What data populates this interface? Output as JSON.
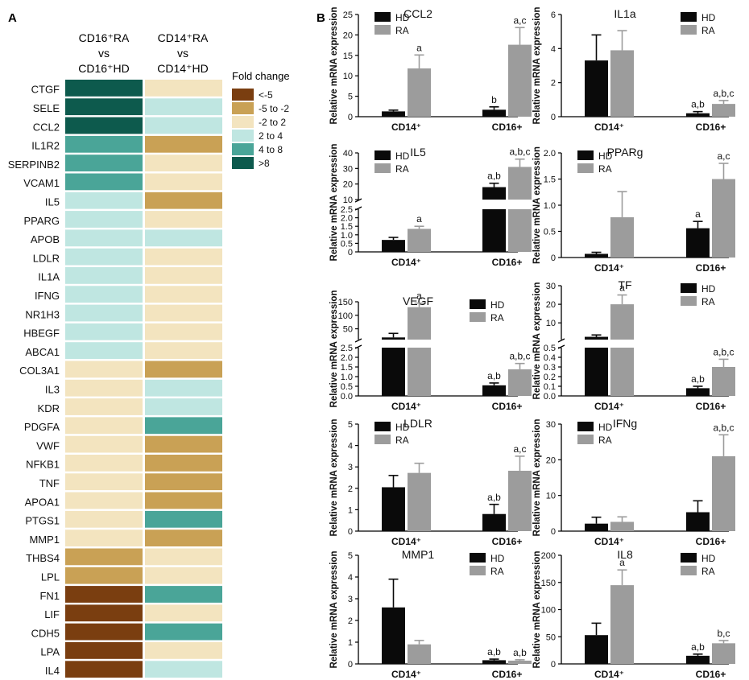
{
  "panel_a": {
    "label": "A",
    "col1_header": [
      "CD16⁺RA",
      "vs",
      "CD16⁺HD"
    ],
    "col2_header": [
      "CD14⁺RA",
      "vs",
      "CD14⁺HD"
    ],
    "legend_title": "Fold change",
    "legend": [
      {
        "label": "<-5",
        "color": "#7a3e10"
      },
      {
        "label": "-5 to -2",
        "color": "#c9a155"
      },
      {
        "label": "-2 to 2",
        "color": "#f3e4bf"
      },
      {
        "label": "2 to 4",
        "color": "#bfe6e1"
      },
      {
        "label": "4 to 8",
        "color": "#4aa598"
      },
      {
        "label": ">8",
        "color": "#0d5a4d"
      }
    ]
  },
  "panel_b": {
    "label": "B"
  },
  "chart_data": [
    {
      "type": "heatmap",
      "title": "Fold change",
      "columns": [
        "CD16⁺RA vs CD16⁺HD",
        "CD14⁺RA vs CD14⁺HD"
      ],
      "rows": [
        "CTGF",
        "SELE",
        "CCL2",
        "IL1R2",
        "SERPINB2",
        "VCAM1",
        "IL5",
        "PPARG",
        "APOB",
        "LDLR",
        "IL1A",
        "IFNG",
        "NR1H3",
        "HBEGF",
        "ABCA1",
        "COL3A1",
        "IL3",
        "KDR",
        "PDGFA",
        "VWF",
        "NFKB1",
        "TNF",
        "APOA1",
        "PTGS1",
        "MMP1",
        "THBS4",
        "LPL",
        "FN1",
        "LIF",
        "CDH5",
        "LPA",
        "IL4"
      ],
      "categories": [
        "<-5",
        "-5 to -2",
        "-2 to 2",
        "2 to 4",
        "4 to 8",
        ">8"
      ],
      "values": [
        [
          5,
          2
        ],
        [
          5,
          3
        ],
        [
          5,
          3
        ],
        [
          4,
          1
        ],
        [
          4,
          2
        ],
        [
          4,
          2
        ],
        [
          3,
          1
        ],
        [
          3,
          2
        ],
        [
          3,
          3
        ],
        [
          3,
          2
        ],
        [
          3,
          2
        ],
        [
          3,
          2
        ],
        [
          3,
          2
        ],
        [
          3,
          2
        ],
        [
          3,
          2
        ],
        [
          2,
          1
        ],
        [
          2,
          3
        ],
        [
          2,
          3
        ],
        [
          2,
          4
        ],
        [
          2,
          1
        ],
        [
          2,
          1
        ],
        [
          2,
          1
        ],
        [
          2,
          1
        ],
        [
          2,
          4
        ],
        [
          2,
          1
        ],
        [
          1,
          2
        ],
        [
          1,
          2
        ],
        [
          0,
          4
        ],
        [
          0,
          2
        ],
        [
          0,
          4
        ],
        [
          0,
          2
        ],
        [
          0,
          3
        ]
      ]
    },
    {
      "type": "bar",
      "title": "CCL2",
      "ylabel": "Relative mRNA expression",
      "categories": [
        "CD14⁺",
        "CD16+"
      ],
      "series": [
        {
          "name": "HD",
          "values": [
            1.3,
            1.7
          ],
          "errors": [
            0.3,
            0.7
          ],
          "annotations": [
            "",
            "b"
          ]
        },
        {
          "name": "RA",
          "values": [
            11.8,
            17.6
          ],
          "errors": [
            3.3,
            4.2
          ],
          "annotations": [
            "a",
            "a,c"
          ]
        }
      ],
      "ylim": [
        0,
        25
      ],
      "yticks": [
        0,
        5,
        10,
        15,
        20,
        25
      ],
      "legend_position": "top-left"
    },
    {
      "type": "bar",
      "title": "IL1a",
      "ylabel": "Relative mRNA expression",
      "categories": [
        "CD14⁺",
        "CD16+"
      ],
      "series": [
        {
          "name": "HD",
          "values": [
            3.3,
            0.2
          ],
          "errors": [
            1.5,
            0.1
          ],
          "annotations": [
            "",
            "a,b"
          ]
        },
        {
          "name": "RA",
          "values": [
            3.9,
            0.75
          ],
          "errors": [
            1.15,
            0.2
          ],
          "annotations": [
            "",
            "a,b,c"
          ]
        }
      ],
      "ylim": [
        0,
        6
      ],
      "yticks": [
        0,
        2,
        4,
        6
      ],
      "legend_position": "top-right"
    },
    {
      "type": "bar",
      "title": "IL5",
      "ylabel": "Relative mRNA expression",
      "categories": [
        "CD14⁺",
        "CD16+"
      ],
      "series": [
        {
          "name": "HD",
          "values": [
            0.7,
            18
          ],
          "errors": [
            0.15,
            2.5
          ],
          "annotations": [
            "",
            "a,b"
          ]
        },
        {
          "name": "RA",
          "values": [
            1.35,
            31
          ],
          "errors": [
            0.15,
            5
          ],
          "annotations": [
            "a",
            "a,b,c"
          ]
        }
      ],
      "ylim": [
        0,
        40
      ],
      "yticks": [
        0,
        0.5,
        1.0,
        1.5,
        2.0,
        2.5,
        10,
        20,
        30,
        40
      ],
      "axis_break": [
        2.5,
        10
      ],
      "legend_position": "top-left"
    },
    {
      "type": "bar",
      "title": "PPARg",
      "ylabel": "Relative mRNA expression",
      "categories": [
        "CD14⁺",
        "CD16+"
      ],
      "series": [
        {
          "name": "HD",
          "values": [
            0.07,
            0.56
          ],
          "errors": [
            0.03,
            0.13
          ],
          "annotations": [
            "",
            "a"
          ]
        },
        {
          "name": "RA",
          "values": [
            0.77,
            1.5
          ],
          "errors": [
            0.49,
            0.3
          ],
          "annotations": [
            "",
            "a,c"
          ]
        }
      ],
      "ylim": [
        0,
        2.0
      ],
      "yticks": [
        0,
        0.5,
        1.0,
        1.5,
        2.0
      ],
      "legend_position": "top-left"
    },
    {
      "type": "bar",
      "title": "VEGF",
      "ylabel": "Relative mRNA expression",
      "categories": [
        "CD14⁺",
        "CD16+"
      ],
      "series": [
        {
          "name": "HD",
          "values": [
            18,
            0.55
          ],
          "errors": [
            15,
            0.12
          ],
          "annotations": [
            "",
            "a,b"
          ]
        },
        {
          "name": "RA",
          "values": [
            130,
            1.38
          ],
          "errors": [
            15,
            0.3
          ],
          "annotations": [
            "a",
            "a,b,c"
          ]
        }
      ],
      "ylim": [
        0,
        150
      ],
      "yticks": [
        0.0,
        0.5,
        1.0,
        1.5,
        2.0,
        2.5,
        50,
        100,
        150
      ],
      "axis_break": [
        2.5,
        10
      ],
      "legend_position": "top-right"
    },
    {
      "type": "bar",
      "title": "TF",
      "ylabel": "Relative mRNA expression",
      "categories": [
        "CD14⁺",
        "CD16+"
      ],
      "series": [
        {
          "name": "HD",
          "values": [
            2.5,
            0.08
          ],
          "errors": [
            1.0,
            0.02
          ],
          "annotations": [
            "",
            "a,b"
          ]
        },
        {
          "name": "RA",
          "values": [
            20,
            0.3
          ],
          "errors": [
            5,
            0.08
          ],
          "annotations": [
            "a",
            "a,b,c"
          ]
        }
      ],
      "ylim": [
        0,
        30
      ],
      "yticks": [
        0.0,
        0.1,
        0.2,
        0.3,
        0.4,
        0.5,
        10,
        20,
        30
      ],
      "axis_break": [
        0.5,
        1
      ],
      "legend_position": "top-right"
    },
    {
      "type": "bar",
      "title": "LDLR",
      "ylabel": "Relative mRNA expression",
      "categories": [
        "CD14⁺",
        "CD16+"
      ],
      "series": [
        {
          "name": "HD",
          "values": [
            2.05,
            0.8
          ],
          "errors": [
            0.55,
            0.45
          ],
          "annotations": [
            "",
            "a,b"
          ]
        },
        {
          "name": "RA",
          "values": [
            2.72,
            2.82
          ],
          "errors": [
            0.45,
            0.68
          ],
          "annotations": [
            "",
            "a,c"
          ]
        }
      ],
      "ylim": [
        0,
        5
      ],
      "yticks": [
        0,
        1,
        2,
        3,
        4,
        5
      ],
      "legend_position": "top-left"
    },
    {
      "type": "bar",
      "title": "IFNg",
      "ylabel": "Relative mRNA expression",
      "categories": [
        "CD14⁺",
        "CD16+"
      ],
      "series": [
        {
          "name": "HD",
          "values": [
            2.1,
            5.3
          ],
          "errors": [
            1.8,
            3.2
          ],
          "annotations": [
            "",
            ""
          ]
        },
        {
          "name": "RA",
          "values": [
            2.6,
            21
          ],
          "errors": [
            1.4,
            6
          ],
          "annotations": [
            "",
            "a,b,c"
          ]
        }
      ],
      "ylim": [
        0,
        30
      ],
      "yticks": [
        0,
        10,
        20,
        30
      ],
      "legend_position": "top-left"
    },
    {
      "type": "bar",
      "title": "MMP1",
      "ylabel": "Relative mRNA expression",
      "categories": [
        "CD14⁺",
        "CD16+"
      ],
      "series": [
        {
          "name": "HD",
          "values": [
            2.6,
            0.17
          ],
          "errors": [
            1.3,
            0.05
          ],
          "annotations": [
            "",
            "a,b"
          ]
        },
        {
          "name": "RA",
          "values": [
            0.9,
            0.15
          ],
          "errors": [
            0.18,
            0.04
          ],
          "annotations": [
            "",
            "a,b"
          ]
        }
      ],
      "ylim": [
        0,
        5
      ],
      "yticks": [
        0,
        1,
        2,
        3,
        4,
        5
      ],
      "legend_position": "top-right"
    },
    {
      "type": "bar",
      "title": "IL8",
      "ylabel": "Relative mRNA expression",
      "categories": [
        "CD14⁺",
        "CD16+"
      ],
      "series": [
        {
          "name": "HD",
          "values": [
            53,
            15
          ],
          "errors": [
            22,
            3
          ],
          "annotations": [
            "",
            "a,b"
          ]
        },
        {
          "name": "RA",
          "values": [
            145,
            38
          ],
          "errors": [
            28,
            5
          ],
          "annotations": [
            "a",
            "b,c"
          ]
        }
      ],
      "ylim": [
        0,
        200
      ],
      "yticks": [
        0,
        50,
        100,
        150,
        200
      ],
      "legend_position": "top-right"
    }
  ]
}
